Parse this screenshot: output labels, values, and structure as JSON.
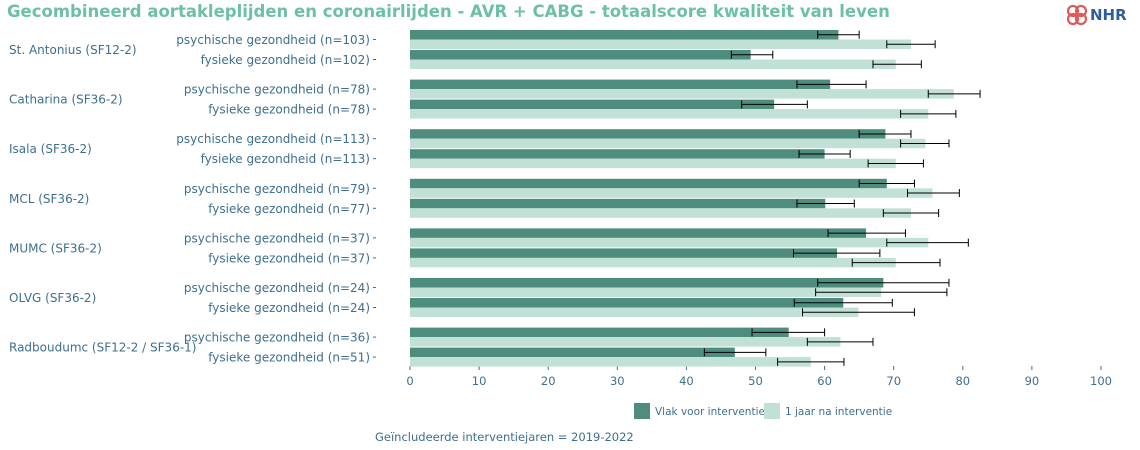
{
  "header": {
    "title": "Gecombineerd aortakleplijden en coronairlijden - AVR + CABG - totaalscore kwaliteit van leven",
    "logo_text": "NHR"
  },
  "colors": {
    "before": "#4e8c7d",
    "after": "#c1e1d7",
    "text": "#3e6f8e",
    "title": "#6cc0a5",
    "logo_mark": "#e05a5a",
    "logo_text": "#2f5d9e"
  },
  "chart_data": {
    "type": "bar",
    "orientation": "horizontal",
    "title": "Gecombineerd aortakleplijden en coronairlijden - AVR + CABG - totaalscore kwaliteit van leven",
    "xlim": [
      0,
      100
    ],
    "xticks": [
      0,
      10,
      20,
      30,
      40,
      50,
      60,
      70,
      80,
      90,
      100
    ],
    "grid": false,
    "legend_position": "bottom",
    "series": [
      {
        "name": "Vlak voor interventie"
      },
      {
        "name": "1 jaar na interventie"
      }
    ],
    "groups": [
      {
        "hospital": "St. Antonius (SF12-2)",
        "rows": [
          {
            "label": "psychische gezondheid (n=103)",
            "before": 62,
            "before_err": [
              59,
              65
            ],
            "after": 72.5,
            "after_err": [
              69,
              76
            ]
          },
          {
            "label": "fysieke gezondheid (n=102)",
            "before": 49.3,
            "before_err": [
              46.5,
              52.5
            ],
            "after": 70.3,
            "after_err": [
              67,
              74
            ]
          }
        ]
      },
      {
        "hospital": "Catharina (SF36-2)",
        "rows": [
          {
            "label": "psychische gezondheid (n=78)",
            "before": 60.8,
            "before_err": [
              56,
              66
            ],
            "after": 78.7,
            "after_err": [
              75,
              82.5
            ]
          },
          {
            "label": "fysieke gezondheid (n=78)",
            "before": 52.7,
            "before_err": [
              48,
              57.5
            ],
            "after": 75,
            "after_err": [
              71,
              79
            ]
          }
        ]
      },
      {
        "hospital": "Isala (SF36-2)",
        "rows": [
          {
            "label": "psychische gezondheid (n=113)",
            "before": 68.8,
            "before_err": [
              65,
              72.5
            ],
            "after": 74.6,
            "after_err": [
              71,
              78
            ]
          },
          {
            "label": "fysieke gezondheid (n=113)",
            "before": 60,
            "before_err": [
              56.3,
              63.7
            ],
            "after": 70.3,
            "after_err": [
              66.3,
              74.3
            ]
          }
        ]
      },
      {
        "hospital": "MCL (SF36-2)",
        "rows": [
          {
            "label": "psychische gezondheid (n=79)",
            "before": 69,
            "before_err": [
              65,
              73
            ],
            "after": 75.6,
            "after_err": [
              72,
              79.5
            ]
          },
          {
            "label": "fysieke gezondheid (n=77)",
            "before": 60.1,
            "before_err": [
              56,
              64.3
            ],
            "after": 72.5,
            "after_err": [
              68.5,
              76.5
            ]
          }
        ]
      },
      {
        "hospital": "MUMC (SF36-2)",
        "rows": [
          {
            "label": "psychische gezondheid (n=37)",
            "before": 66,
            "before_err": [
              60.5,
              71.7
            ],
            "after": 75,
            "after_err": [
              69,
              80.8
            ]
          },
          {
            "label": "fysieke gezondheid (n=37)",
            "before": 61.8,
            "before_err": [
              55.5,
              68
            ],
            "after": 70.3,
            "after_err": [
              64,
              76.7
            ]
          }
        ]
      },
      {
        "hospital": "OLVG (SF36-2)",
        "rows": [
          {
            "label": "psychische gezondheid (n=24)",
            "before": 68.5,
            "before_err": [
              59,
              78
            ],
            "after": 68.2,
            "after_err": [
              58.7,
              77.7
            ]
          },
          {
            "label": "fysieke gezondheid (n=24)",
            "before": 62.7,
            "before_err": [
              55.6,
              69.8
            ],
            "after": 64.9,
            "after_err": [
              56.8,
              73
            ]
          }
        ]
      },
      {
        "hospital": "Radboudumc (SF12-2 / SF36-1)",
        "rows": [
          {
            "label": "psychische gezondheid (n=36)",
            "before": 54.8,
            "before_err": [
              49.5,
              60
            ],
            "after": 62.3,
            "after_err": [
              57.5,
              67
            ]
          },
          {
            "label": "fysieke gezondheid (n=51)",
            "before": 47,
            "before_err": [
              42.6,
              51.5
            ],
            "after": 58,
            "after_err": [
              53.2,
              62.8
            ]
          }
        ]
      }
    ],
    "footnote": "Geïncludeerde interventiejaren = 2019-2022"
  }
}
